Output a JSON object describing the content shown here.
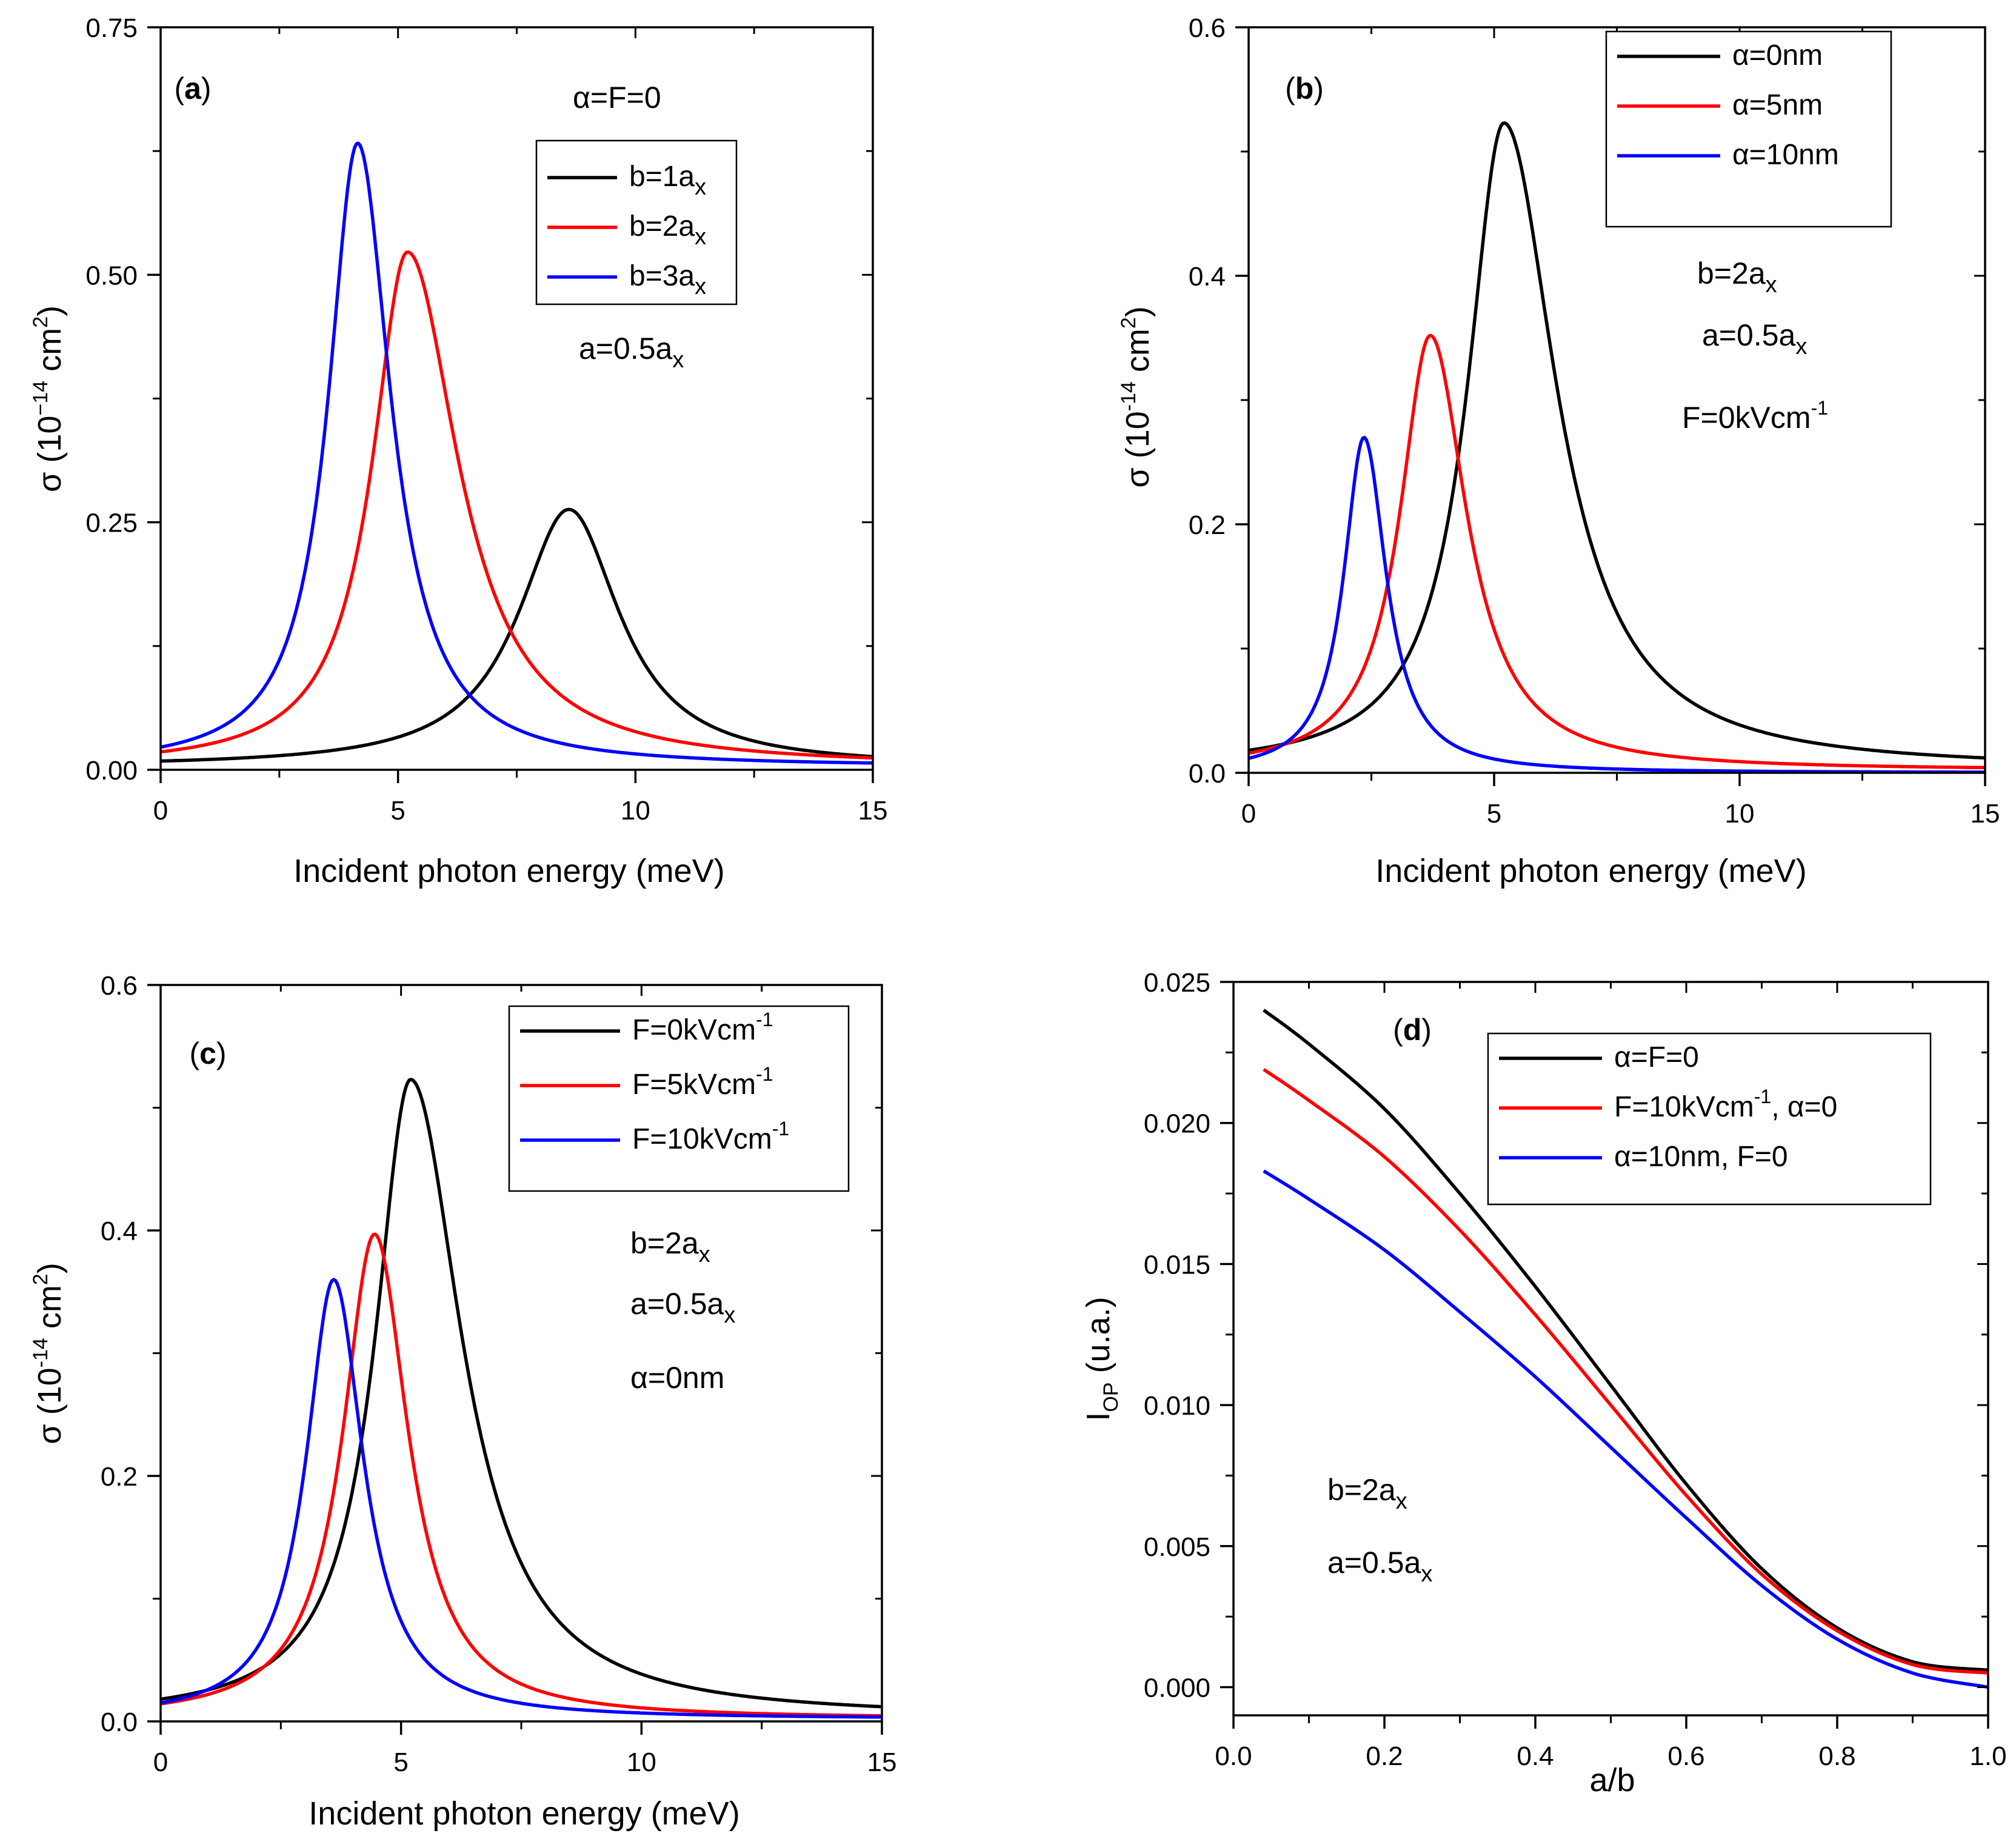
{
  "chart_data": [
    {
      "type": "line",
      "panel_label": "a",
      "xlabel": "Incident photon energy (meV)",
      "ylabel_prefix": "σ (10",
      "ylabel_exp1": "−14",
      "ylabel_mid": " cm",
      "ylabel_exp2": "2",
      "ylabel_suffix": ")",
      "xlim": [
        0,
        15
      ],
      "ylim": [
        0,
        0.75
      ],
      "xticks": [
        0,
        5,
        10,
        15
      ],
      "xtick_labels": [
        "0",
        "5",
        "10",
        "15"
      ],
      "yticks": [
        0,
        0.25,
        0.5,
        0.75
      ],
      "ytick_labels": [
        "0.00",
        "0.25",
        "0.50",
        "0.75"
      ],
      "legend_position": "upper-middle",
      "annotations": [
        {
          "text": "α=F=0",
          "sub": ""
        },
        {
          "text": "a=0.5a",
          "sub": "x"
        }
      ],
      "series": [
        {
          "name": "b=1a",
          "name_sub": "x",
          "color": "#000000",
          "shape": "lorentz",
          "peak_x": 8.6,
          "peak_y": 0.26,
          "w_left": 1.3,
          "w_right": 1.3,
          "bg": 0.003
        },
        {
          "name": "b=2a",
          "name_sub": "x",
          "color": "#ff0000",
          "shape": "lorentz",
          "peak_x": 5.2,
          "peak_y": 0.52,
          "w_left": 0.9,
          "w_right": 1.3,
          "bg": 0.003
        },
        {
          "name": "b=3a",
          "name_sub": "x",
          "color": "#0000ff",
          "shape": "lorentz",
          "peak_x": 4.15,
          "peak_y": 0.63,
          "w_left": 0.75,
          "w_right": 0.85,
          "bg": 0.003
        }
      ]
    },
    {
      "type": "line",
      "panel_label": "b",
      "xlabel": "Incident photon energy (meV)",
      "ylabel_prefix": "σ (10",
      "ylabel_exp1": "-14",
      "ylabel_mid": " cm",
      "ylabel_exp2": "2",
      "ylabel_suffix": ")",
      "xlim": [
        0,
        15
      ],
      "ylim": [
        0,
        0.6
      ],
      "xticks": [
        0,
        5,
        10,
        15
      ],
      "xtick_labels": [
        "0",
        "5",
        "10",
        "15"
      ],
      "yticks": [
        0,
        0.2,
        0.4,
        0.6
      ],
      "ytick_labels": [
        "0.0",
        "0.2",
        "0.4",
        "0.6"
      ],
      "legend_position": "top-middle",
      "annotations": [
        {
          "text": "b=2a",
          "sub": "x"
        },
        {
          "text": "a=0.5a",
          "sub": "x"
        },
        {
          "text": "F=0kVcm",
          "sup": "-1"
        }
      ],
      "series": [
        {
          "name": "α=0nm",
          "name_sub": "",
          "color": "#000000",
          "shape": "lorentz",
          "peak_x": 5.2,
          "peak_y": 0.52,
          "w_left": 0.9,
          "w_right": 1.3,
          "bg": 0.003
        },
        {
          "name": "α=5nm",
          "name_sub": "",
          "color": "#ff0000",
          "shape": "lorentz",
          "peak_x": 3.7,
          "peak_y": 0.35,
          "w_left": 0.75,
          "w_right": 0.9,
          "bg": 0.002
        },
        {
          "name": "α=10nm",
          "name_sub": "",
          "color": "#0000ff",
          "shape": "lorentz",
          "peak_x": 2.35,
          "peak_y": 0.27,
          "w_left": 0.5,
          "w_right": 0.55,
          "bg": 0.0
        }
      ]
    },
    {
      "type": "line",
      "panel_label": "c",
      "xlabel": "Incident photon energy (meV)",
      "ylabel_prefix": "σ (10",
      "ylabel_exp1": "-14",
      "ylabel_mid": " cm",
      "ylabel_exp2": "2",
      "ylabel_suffix": ")",
      "xlim": [
        0,
        15
      ],
      "ylim": [
        0,
        0.6
      ],
      "xticks": [
        0,
        5,
        10,
        15
      ],
      "xtick_labels": [
        "0",
        "5",
        "10",
        "15"
      ],
      "yticks": [
        0,
        0.2,
        0.4,
        0.6
      ],
      "ytick_labels": [
        "0.0",
        "0.2",
        "0.4",
        "0.6"
      ],
      "legend_position": "top-right",
      "annotations": [
        {
          "text": "b=2a",
          "sub": "x"
        },
        {
          "text": "a=0.5a",
          "sub": "x"
        },
        {
          "text": "α=0nm",
          "sub": ""
        }
      ],
      "series": [
        {
          "name": "F=0kVcm",
          "name_sup": "-1",
          "color": "#000000",
          "shape": "lorentz",
          "peak_x": 5.2,
          "peak_y": 0.52,
          "w_left": 0.9,
          "w_right": 1.3,
          "bg": 0.003
        },
        {
          "name": "F=5kVcm",
          "name_sup": "-1",
          "color": "#ff0000",
          "shape": "lorentz",
          "peak_x": 4.45,
          "peak_y": 0.395,
          "w_left": 0.8,
          "w_right": 0.85,
          "bg": 0.002
        },
        {
          "name": "F=10kVcm",
          "name_sup": "-1",
          "color": "#0000ff",
          "shape": "lorentz",
          "peak_x": 3.6,
          "peak_y": 0.358,
          "w_left": 0.7,
          "w_right": 0.75,
          "bg": 0.002
        }
      ]
    },
    {
      "type": "line",
      "panel_label": "d",
      "xlabel": "a/b",
      "ylabel_prefix": "I",
      "ylabel_sub": "OP",
      "ylabel_suffix": " (u.a.)",
      "xlim": [
        0,
        1.0
      ],
      "ylim": [
        -0.001,
        0.025
      ],
      "xticks": [
        0,
        0.2,
        0.4,
        0.6,
        0.8,
        1.0
      ],
      "xtick_labels": [
        "0.0",
        "0.2",
        "0.4",
        "0.6",
        "0.8",
        "1.0"
      ],
      "yticks": [
        0,
        0.005,
        0.01,
        0.015,
        0.02,
        0.025
      ],
      "ytick_labels": [
        "0.000",
        "0.005",
        "0.010",
        "0.015",
        "0.020",
        "0.025"
      ],
      "legend_position": "top-right",
      "annotations": [
        {
          "text": "b=2a",
          "sub": "x"
        },
        {
          "text": "a=0.5a",
          "sub": "x"
        }
      ],
      "series": [
        {
          "name": "α=F=0",
          "color": "#000000",
          "shape": "points",
          "x": [
            0.04,
            0.1,
            0.2,
            0.3,
            0.4,
            0.5,
            0.6,
            0.7,
            0.8,
            0.9,
            1.0
          ],
          "y": [
            0.024,
            0.0228,
            0.0205,
            0.0175,
            0.0142,
            0.0107,
            0.0072,
            0.0042,
            0.0021,
            0.0009,
            0.0006
          ]
        },
        {
          "name": "F=10kVcm",
          "name_sup": "-1",
          "name_tail": ", α=0",
          "color": "#ff0000",
          "shape": "points",
          "x": [
            0.04,
            0.1,
            0.2,
            0.3,
            0.4,
            0.5,
            0.6,
            0.7,
            0.8,
            0.9,
            1.0
          ],
          "y": [
            0.0219,
            0.0208,
            0.0188,
            0.0162,
            0.0132,
            0.01,
            0.0068,
            0.004,
            0.002,
            0.0008,
            0.0005
          ]
        },
        {
          "name": "α=10nm, F=0",
          "color": "#0000ff",
          "shape": "points",
          "x": [
            0.04,
            0.1,
            0.2,
            0.3,
            0.4,
            0.5,
            0.6,
            0.7,
            0.8,
            0.9,
            1.0
          ],
          "y": [
            0.0183,
            0.0173,
            0.0155,
            0.0133,
            0.011,
            0.0085,
            0.006,
            0.0036,
            0.0017,
            0.0005,
            0.0
          ]
        }
      ]
    }
  ]
}
